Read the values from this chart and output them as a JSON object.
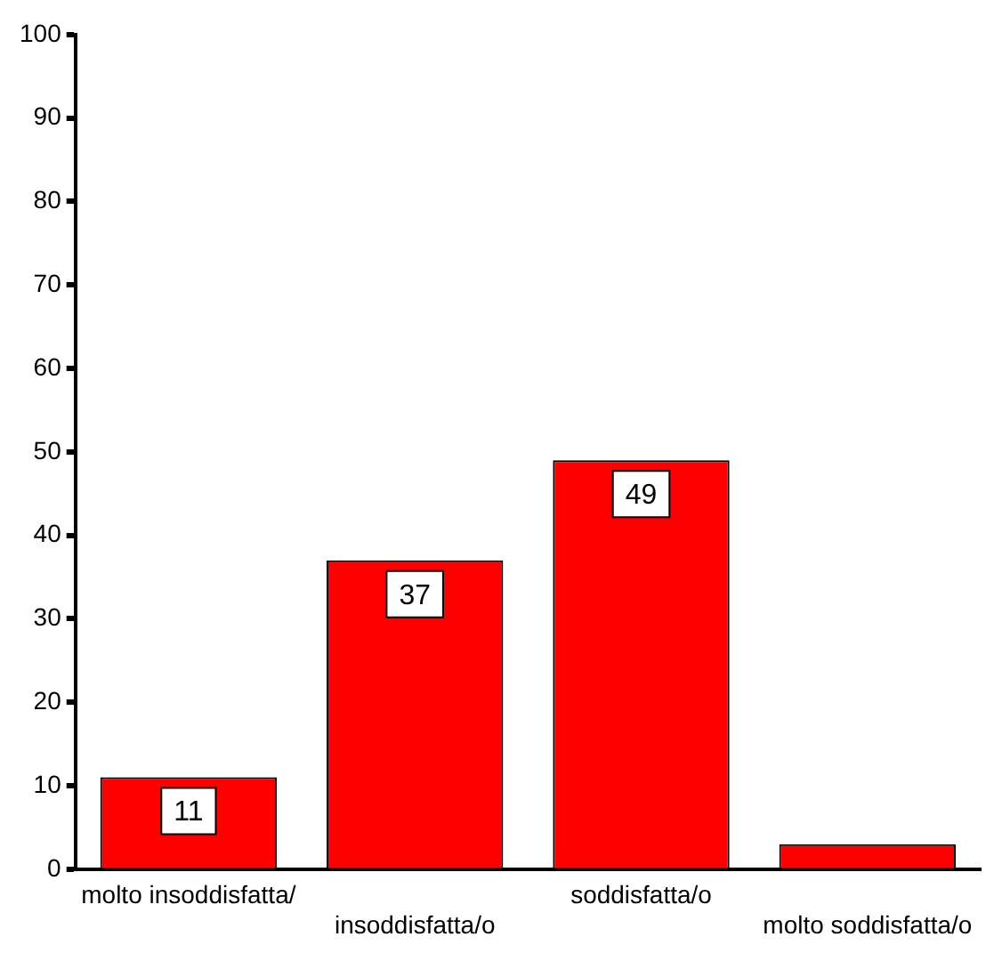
{
  "chart_data": {
    "type": "bar",
    "categories": [
      "molto insoddisfatta/",
      "insoddisfatta/o",
      "soddisfatta/o",
      "molto soddisfatta/o"
    ],
    "values": [
      11,
      37,
      49,
      3
    ],
    "value_labels": [
      "11",
      "37",
      "49",
      null
    ],
    "color": "#ff0000",
    "ylim": [
      0,
      100
    ],
    "yticks": [
      0,
      10,
      20,
      30,
      40,
      50,
      60,
      70,
      80,
      90,
      100
    ],
    "grid": false,
    "legend": false
  }
}
